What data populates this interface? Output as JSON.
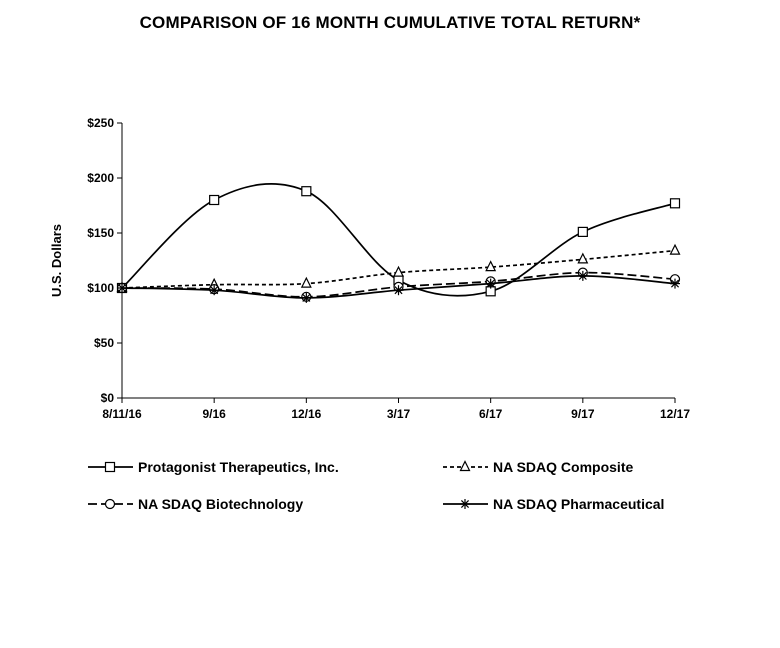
{
  "chart_data": {
    "type": "line",
    "title": "COMPARISON  OF 16 MONTH CUMULATIVE  TOTAL RETURN*",
    "xlabel": "",
    "ylabel": "U.S. Dollars",
    "categories": [
      "8/11/16",
      "9/16",
      "12/16",
      "3/17",
      "6/17",
      "9/17",
      "12/17"
    ],
    "y_tick_labels": [
      "$0",
      "$50",
      "$100",
      "$150",
      "$200",
      "$250"
    ],
    "ylim": [
      0,
      250
    ],
    "grid": false,
    "legend_position": "bottom",
    "series": [
      {
        "name": "Protagonist Therapeutics, Inc.",
        "values": [
          100,
          180,
          188,
          107,
          97,
          151,
          177
        ],
        "marker": "square",
        "dash": "solid"
      },
      {
        "name": "NA SDAQ Composite",
        "values": [
          100,
          103,
          104,
          114,
          119,
          126,
          134
        ],
        "marker": "triangle",
        "dash": "short-dash"
      },
      {
        "name": "NA SDAQ Biotechnology",
        "values": [
          100,
          99,
          92,
          101,
          106,
          114,
          108
        ],
        "marker": "circle",
        "dash": "long-dash"
      },
      {
        "name": "NA SDAQ Pharmaceutical",
        "values": [
          100,
          98,
          91,
          98,
          104,
          111,
          104
        ],
        "marker": "star",
        "dash": "solid"
      }
    ]
  }
}
